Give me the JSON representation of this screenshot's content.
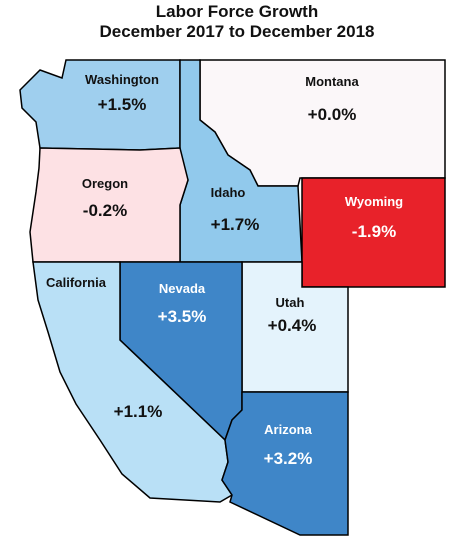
{
  "title_line1": "Labor Force Growth",
  "title_line2": "December 2017 to December 2018",
  "states": {
    "washington": {
      "name": "Washington",
      "value": "+1.5%",
      "fill": "#9fcfee",
      "text": "#111111"
    },
    "montana": {
      "name": "Montana",
      "value": "+0.0%",
      "fill": "#fbf7f9",
      "text": "#111111"
    },
    "oregon": {
      "name": "Oregon",
      "value": "-0.2%",
      "fill": "#fde1e4",
      "text": "#111111"
    },
    "idaho": {
      "name": "Idaho",
      "value": "+1.7%",
      "fill": "#91c9ec",
      "text": "#111111"
    },
    "wyoming": {
      "name": "Wyoming",
      "value": "-1.9%",
      "fill": "#e8222a",
      "text": "#ffffff"
    },
    "california": {
      "name": "California",
      "value": "+1.1%",
      "fill": "#b9e0f6",
      "text": "#111111"
    },
    "nevada": {
      "name": "Nevada",
      "value": "+3.5%",
      "fill": "#3f86c8",
      "text": "#ffffff"
    },
    "utah": {
      "name": "Utah",
      "value": "+0.4%",
      "fill": "#e4f3fc",
      "text": "#111111"
    },
    "arizona": {
      "name": "Arizona",
      "value": "+3.2%",
      "fill": "#3f86c8",
      "text": "#ffffff"
    }
  }
}
